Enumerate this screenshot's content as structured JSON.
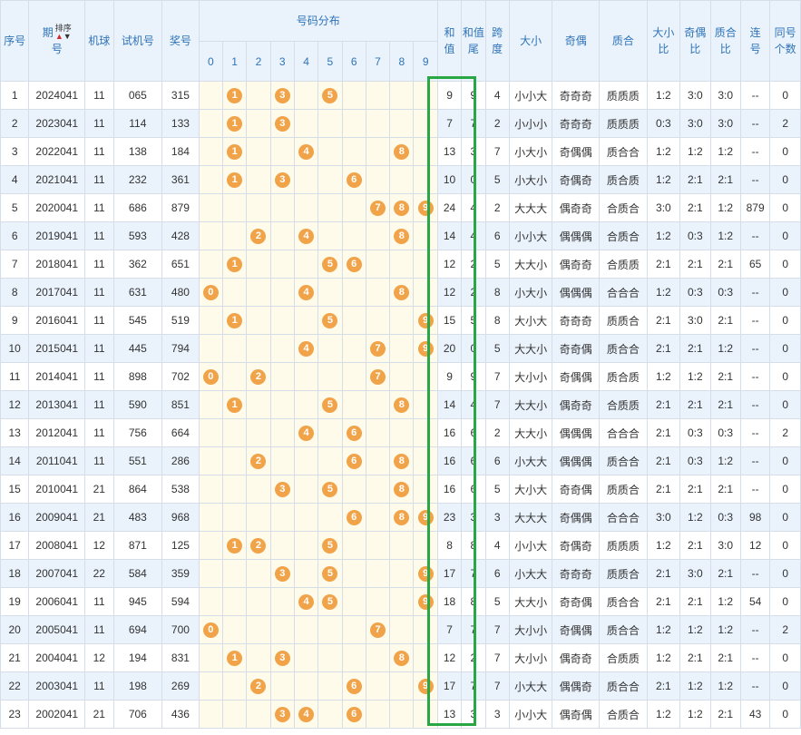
{
  "headers": {
    "seq": "序号",
    "issue_top": "期",
    "issue_bottom": "号",
    "sort_label": "排序",
    "machine": "机球",
    "test_no": "试机号",
    "prize": "奖号",
    "dist": "号码分布",
    "digits": [
      "0",
      "1",
      "2",
      "3",
      "4",
      "5",
      "6",
      "7",
      "8",
      "9"
    ],
    "sum_top": "和",
    "sum_bottom": "值",
    "tail_top": "和值",
    "tail_bottom": "尾",
    "span_top": "跨",
    "span_bottom": "度",
    "size": "大小",
    "oddeven": "奇偶",
    "prime": "质合",
    "size_ratio_top": "大小",
    "size_ratio_bottom": "比",
    "oe_ratio_top": "奇偶",
    "oe_ratio_bottom": "比",
    "pc_ratio_top": "质合",
    "pc_ratio_bottom": "比",
    "consec_top": "连",
    "consec_bottom": "号",
    "same_top": "同号",
    "same_bottom": "个数"
  },
  "colors": {
    "ball": "#f0a349",
    "highlight_box": "#29a744",
    "header_text": "#2f74b8"
  },
  "rows": [
    {
      "seq": "1",
      "issue": "2024041",
      "machine": "11",
      "test": "065",
      "prize": "315",
      "balls": [
        1,
        3,
        5
      ],
      "sum": "9",
      "tail": "9",
      "span": "4",
      "size": "小小大",
      "oe": "奇奇奇",
      "pc": "质质质",
      "sr": "1:2",
      "oer": "3:0",
      "pcr": "3:0",
      "consec": "--",
      "same": "0"
    },
    {
      "seq": "2",
      "issue": "2023041",
      "machine": "11",
      "test": "114",
      "prize": "133",
      "balls": [
        1,
        3
      ],
      "sum": "7",
      "tail": "7",
      "span": "2",
      "size": "小小小",
      "oe": "奇奇奇",
      "pc": "质质质",
      "sr": "0:3",
      "oer": "3:0",
      "pcr": "3:0",
      "consec": "--",
      "same": "2"
    },
    {
      "seq": "3",
      "issue": "2022041",
      "machine": "11",
      "test": "138",
      "prize": "184",
      "balls": [
        1,
        4,
        8
      ],
      "sum": "13",
      "tail": "3",
      "span": "7",
      "size": "小大小",
      "oe": "奇偶偶",
      "pc": "质合合",
      "sr": "1:2",
      "oer": "1:2",
      "pcr": "1:2",
      "consec": "--",
      "same": "0"
    },
    {
      "seq": "4",
      "issue": "2021041",
      "machine": "11",
      "test": "232",
      "prize": "361",
      "balls": [
        1,
        3,
        6
      ],
      "sum": "10",
      "tail": "0",
      "span": "5",
      "size": "小大小",
      "oe": "奇偶奇",
      "pc": "质合质",
      "sr": "1:2",
      "oer": "2:1",
      "pcr": "2:1",
      "consec": "--",
      "same": "0"
    },
    {
      "seq": "5",
      "issue": "2020041",
      "machine": "11",
      "test": "686",
      "prize": "879",
      "balls": [
        7,
        8,
        9
      ],
      "sum": "24",
      "tail": "4",
      "span": "2",
      "size": "大大大",
      "oe": "偶奇奇",
      "pc": "合质合",
      "sr": "3:0",
      "oer": "2:1",
      "pcr": "1:2",
      "consec": "879",
      "same": "0"
    },
    {
      "seq": "6",
      "issue": "2019041",
      "machine": "11",
      "test": "593",
      "prize": "428",
      "balls": [
        2,
        4,
        8
      ],
      "sum": "14",
      "tail": "4",
      "span": "6",
      "size": "小小大",
      "oe": "偶偶偶",
      "pc": "合质合",
      "sr": "1:2",
      "oer": "0:3",
      "pcr": "1:2",
      "consec": "--",
      "same": "0"
    },
    {
      "seq": "7",
      "issue": "2018041",
      "machine": "11",
      "test": "362",
      "prize": "651",
      "balls": [
        1,
        5,
        6
      ],
      "sum": "12",
      "tail": "2",
      "span": "5",
      "size": "大大小",
      "oe": "偶奇奇",
      "pc": "合质质",
      "sr": "2:1",
      "oer": "2:1",
      "pcr": "2:1",
      "consec": "65",
      "same": "0"
    },
    {
      "seq": "8",
      "issue": "2017041",
      "machine": "11",
      "test": "631",
      "prize": "480",
      "balls": [
        0,
        4,
        8
      ],
      "sum": "12",
      "tail": "2",
      "span": "8",
      "size": "小大小",
      "oe": "偶偶偶",
      "pc": "合合合",
      "sr": "1:2",
      "oer": "0:3",
      "pcr": "0:3",
      "consec": "--",
      "same": "0"
    },
    {
      "seq": "9",
      "issue": "2016041",
      "machine": "11",
      "test": "545",
      "prize": "519",
      "balls": [
        1,
        5,
        9
      ],
      "sum": "15",
      "tail": "5",
      "span": "8",
      "size": "大小大",
      "oe": "奇奇奇",
      "pc": "质质合",
      "sr": "2:1",
      "oer": "3:0",
      "pcr": "2:1",
      "consec": "--",
      "same": "0"
    },
    {
      "seq": "10",
      "issue": "2015041",
      "machine": "11",
      "test": "445",
      "prize": "794",
      "balls": [
        4,
        7,
        9
      ],
      "sum": "20",
      "tail": "0",
      "span": "5",
      "size": "大大小",
      "oe": "奇奇偶",
      "pc": "质合合",
      "sr": "2:1",
      "oer": "2:1",
      "pcr": "1:2",
      "consec": "--",
      "same": "0"
    },
    {
      "seq": "11",
      "issue": "2014041",
      "machine": "11",
      "test": "898",
      "prize": "702",
      "balls": [
        0,
        2,
        7
      ],
      "sum": "9",
      "tail": "9",
      "span": "7",
      "size": "大小小",
      "oe": "奇偶偶",
      "pc": "质合质",
      "sr": "1:2",
      "oer": "1:2",
      "pcr": "2:1",
      "consec": "--",
      "same": "0"
    },
    {
      "seq": "12",
      "issue": "2013041",
      "machine": "11",
      "test": "590",
      "prize": "851",
      "balls": [
        1,
        5,
        8
      ],
      "sum": "14",
      "tail": "4",
      "span": "7",
      "size": "大大小",
      "oe": "偶奇奇",
      "pc": "合质质",
      "sr": "2:1",
      "oer": "2:1",
      "pcr": "2:1",
      "consec": "--",
      "same": "0"
    },
    {
      "seq": "13",
      "issue": "2012041",
      "machine": "11",
      "test": "756",
      "prize": "664",
      "balls": [
        4,
        6
      ],
      "sum": "16",
      "tail": "6",
      "span": "2",
      "size": "大大小",
      "oe": "偶偶偶",
      "pc": "合合合",
      "sr": "2:1",
      "oer": "0:3",
      "pcr": "0:3",
      "consec": "--",
      "same": "2"
    },
    {
      "seq": "14",
      "issue": "2011041",
      "machine": "11",
      "test": "551",
      "prize": "286",
      "balls": [
        2,
        6,
        8
      ],
      "sum": "16",
      "tail": "6",
      "span": "6",
      "size": "小大大",
      "oe": "偶偶偶",
      "pc": "质合合",
      "sr": "2:1",
      "oer": "0:3",
      "pcr": "1:2",
      "consec": "--",
      "same": "0"
    },
    {
      "seq": "15",
      "issue": "2010041",
      "machine": "21",
      "test": "864",
      "prize": "538",
      "balls": [
        3,
        5,
        8
      ],
      "sum": "16",
      "tail": "6",
      "span": "5",
      "size": "大小大",
      "oe": "奇奇偶",
      "pc": "质质合",
      "sr": "2:1",
      "oer": "2:1",
      "pcr": "2:1",
      "consec": "--",
      "same": "0"
    },
    {
      "seq": "16",
      "issue": "2009041",
      "machine": "21",
      "test": "483",
      "prize": "968",
      "balls": [
        6,
        8,
        9
      ],
      "sum": "23",
      "tail": "3",
      "span": "3",
      "size": "大大大",
      "oe": "奇偶偶",
      "pc": "合合合",
      "sr": "3:0",
      "oer": "1:2",
      "pcr": "0:3",
      "consec": "98",
      "same": "0"
    },
    {
      "seq": "17",
      "issue": "2008041",
      "machine": "12",
      "test": "871",
      "prize": "125",
      "balls": [
        1,
        2,
        5
      ],
      "sum": "8",
      "tail": "8",
      "span": "4",
      "size": "小小大",
      "oe": "奇偶奇",
      "pc": "质质质",
      "sr": "1:2",
      "oer": "2:1",
      "pcr": "3:0",
      "consec": "12",
      "same": "0"
    },
    {
      "seq": "18",
      "issue": "2007041",
      "machine": "22",
      "test": "584",
      "prize": "359",
      "balls": [
        3,
        5,
        9
      ],
      "sum": "17",
      "tail": "7",
      "span": "6",
      "size": "小大大",
      "oe": "奇奇奇",
      "pc": "质质合",
      "sr": "2:1",
      "oer": "3:0",
      "pcr": "2:1",
      "consec": "--",
      "same": "0"
    },
    {
      "seq": "19",
      "issue": "2006041",
      "machine": "11",
      "test": "945",
      "prize": "594",
      "balls": [
        4,
        5,
        9
      ],
      "sum": "18",
      "tail": "8",
      "span": "5",
      "size": "大大小",
      "oe": "奇奇偶",
      "pc": "质合合",
      "sr": "2:1",
      "oer": "2:1",
      "pcr": "1:2",
      "consec": "54",
      "same": "0"
    },
    {
      "seq": "20",
      "issue": "2005041",
      "machine": "11",
      "test": "694",
      "prize": "700",
      "balls": [
        0,
        7
      ],
      "sum": "7",
      "tail": "7",
      "span": "7",
      "size": "大小小",
      "oe": "奇偶偶",
      "pc": "质合合",
      "sr": "1:2",
      "oer": "1:2",
      "pcr": "1:2",
      "consec": "--",
      "same": "2"
    },
    {
      "seq": "21",
      "issue": "2004041",
      "machine": "12",
      "test": "194",
      "prize": "831",
      "balls": [
        1,
        3,
        8
      ],
      "sum": "12",
      "tail": "2",
      "span": "7",
      "size": "大小小",
      "oe": "偶奇奇",
      "pc": "合质质",
      "sr": "1:2",
      "oer": "2:1",
      "pcr": "2:1",
      "consec": "--",
      "same": "0"
    },
    {
      "seq": "22",
      "issue": "2003041",
      "machine": "11",
      "test": "198",
      "prize": "269",
      "balls": [
        2,
        6,
        9
      ],
      "sum": "17",
      "tail": "7",
      "span": "7",
      "size": "小大大",
      "oe": "偶偶奇",
      "pc": "质合合",
      "sr": "2:1",
      "oer": "1:2",
      "pcr": "1:2",
      "consec": "--",
      "same": "0"
    },
    {
      "seq": "23",
      "issue": "2002041",
      "machine": "21",
      "test": "706",
      "prize": "436",
      "balls": [
        3,
        4,
        6
      ],
      "sum": "13",
      "tail": "3",
      "span": "3",
      "size": "小小大",
      "oe": "偶奇偶",
      "pc": "合质合",
      "sr": "1:2",
      "oer": "1:2",
      "pcr": "2:1",
      "consec": "43",
      "same": "0"
    }
  ]
}
